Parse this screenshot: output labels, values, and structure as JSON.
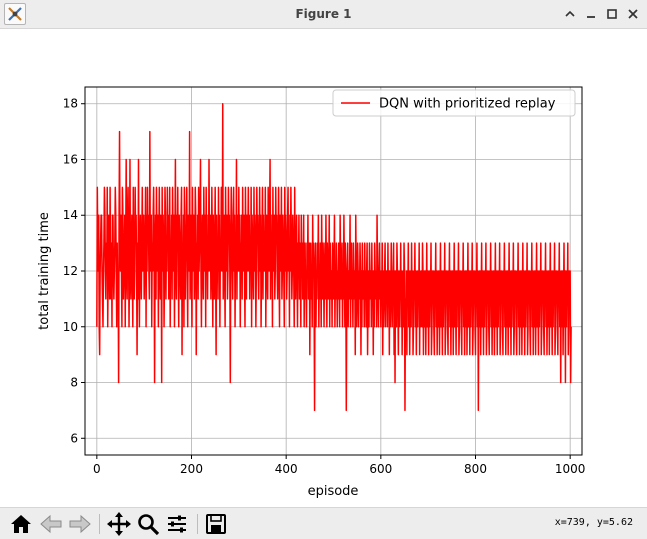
{
  "window": {
    "title": "Figure 1"
  },
  "toolbar": {
    "buttons": [
      "home-icon",
      "back-arrow-icon",
      "forward-arrow-icon",
      "pan-icon",
      "zoom-icon",
      "subplots-icon",
      "save-icon"
    ],
    "coordinates": "x=739, y=5.62"
  },
  "colors": {
    "series": "#ff0000",
    "grid": "#b0b0b0",
    "chrome": "#ededed"
  },
  "chart_data": {
    "type": "line",
    "title": "",
    "xlabel": "episode",
    "ylabel": "total training time",
    "xlim": [
      -25,
      1025
    ],
    "ylim": [
      5.4,
      18.6
    ],
    "xticks": [
      0,
      200,
      400,
      600,
      800,
      1000
    ],
    "yticks": [
      6,
      8,
      10,
      12,
      14,
      16,
      18
    ],
    "grid": true,
    "legend_position": "top-right",
    "series": [
      {
        "name": "DQN with prioritized replay",
        "color": "#ff0000",
        "x_start": 0,
        "x_step": 1,
        "values": [
          10,
          15,
          13,
          12,
          14,
          10,
          9,
          12,
          13,
          14,
          14,
          12,
          11,
          10,
          12,
          13,
          15,
          14,
          12,
          11,
          13,
          12,
          15,
          10,
          12,
          14,
          13,
          11,
          15,
          12,
          11,
          13,
          10,
          14,
          14,
          12,
          11,
          12,
          13,
          15,
          14,
          12,
          10,
          13,
          11,
          12,
          8,
          14,
          17,
          13,
          12,
          14,
          12,
          10,
          15,
          14,
          11,
          12,
          13,
          14,
          10,
          13,
          16,
          12,
          11,
          14,
          15,
          13,
          10,
          12,
          16,
          12,
          11,
          13,
          14,
          12,
          10,
          15,
          12,
          11,
          12,
          15,
          13,
          14,
          12,
          9,
          13,
          11,
          16,
          12,
          10,
          13,
          14,
          12,
          11,
          13,
          15,
          12,
          13,
          14,
          11,
          12,
          13,
          15,
          10,
          14,
          12,
          15,
          13,
          14,
          12,
          11,
          17,
          12,
          13,
          14,
          10,
          13,
          12,
          14,
          15,
          13,
          8,
          12,
          14,
          11,
          15,
          13,
          12,
          14,
          10,
          13,
          15,
          12,
          11,
          14,
          13,
          8,
          15,
          12,
          14,
          13,
          10,
          12,
          15,
          14,
          11,
          13,
          12,
          15,
          13,
          14,
          11,
          12,
          15,
          10,
          13,
          12,
          14,
          11,
          15,
          13,
          12,
          14,
          10,
          13,
          16,
          12,
          11,
          14,
          13,
          15,
          12,
          10,
          14,
          13,
          12,
          11,
          14,
          15,
          9,
          13,
          12,
          14,
          10,
          15,
          12,
          11,
          13,
          14,
          15,
          12,
          10,
          14,
          13,
          12,
          17,
          11,
          13,
          14,
          12,
          10,
          15,
          12,
          13,
          14,
          11,
          12,
          15,
          14,
          9,
          13,
          12,
          14,
          11,
          15,
          12,
          13,
          14,
          16,
          12,
          10,
          13,
          14,
          12,
          11,
          15,
          13,
          12,
          14,
          10,
          15,
          12,
          13,
          11,
          14,
          12,
          16,
          13,
          12,
          14,
          11,
          12,
          15,
          13,
          10,
          14,
          12,
          11,
          13,
          15,
          12,
          9,
          14,
          12,
          13,
          11,
          15,
          12,
          14,
          10,
          13,
          12,
          15,
          14,
          12,
          18,
          11,
          13,
          14,
          12,
          10,
          15,
          13,
          12,
          14,
          11,
          12,
          15,
          13,
          14,
          12,
          8,
          13,
          15,
          14,
          12,
          11,
          13,
          15,
          12,
          14,
          10,
          13,
          12,
          16,
          11,
          14,
          13,
          12,
          15,
          12,
          14,
          10,
          13,
          12,
          14,
          11,
          15,
          12,
          13,
          14,
          12,
          10,
          15,
          13,
          11,
          14,
          12,
          13,
          15,
          12,
          14,
          11,
          13,
          12,
          15,
          10,
          14,
          13,
          12,
          11,
          15,
          12,
          14,
          13,
          10,
          12,
          15,
          13,
          14,
          12,
          11,
          13,
          15,
          12,
          14,
          10,
          12,
          13,
          15,
          11,
          14,
          12,
          13,
          12,
          15,
          10,
          13,
          14,
          12,
          11,
          15,
          13,
          12,
          14,
          16,
          11,
          13,
          12,
          14,
          10,
          15,
          12,
          13,
          14,
          11,
          12,
          15,
          13,
          14,
          12,
          11,
          13,
          15,
          12,
          10,
          14,
          13,
          12,
          15,
          11,
          12,
          14,
          13,
          12,
          10,
          15,
          12,
          14,
          13,
          11,
          12,
          14,
          15,
          12,
          13,
          10,
          14,
          12,
          15,
          13,
          11,
          12,
          14,
          13,
          12,
          10,
          15,
          12,
          11,
          13,
          14,
          12,
          10,
          13,
          12,
          14,
          11,
          13,
          12,
          10,
          14,
          12,
          13,
          11,
          12,
          14,
          10,
          12,
          13,
          11,
          12,
          10,
          13,
          12,
          14,
          11,
          12,
          13,
          9,
          12,
          13,
          11,
          12,
          10,
          14,
          12,
          13,
          11,
          7,
          12,
          13,
          10,
          12,
          11,
          13,
          12,
          14,
          10,
          12,
          11,
          13,
          12,
          10,
          14,
          12,
          11,
          13,
          12,
          10,
          12,
          13,
          11,
          14,
          12,
          10,
          13,
          12,
          11,
          12,
          14,
          10,
          13,
          12,
          11,
          12,
          10,
          13,
          12,
          11,
          12,
          14,
          10,
          12,
          11,
          13,
          12,
          10,
          12,
          11,
          13,
          12,
          10,
          14,
          12,
          11,
          12,
          13,
          10,
          12,
          11,
          14,
          12,
          10,
          13,
          12,
          7,
          11,
          12,
          13,
          10,
          12,
          11,
          12,
          14,
          10,
          12,
          13,
          11,
          12,
          10,
          13,
          12,
          11,
          12,
          9,
          14,
          12,
          10,
          11,
          13,
          12,
          10,
          12,
          11,
          13,
          12,
          9,
          12,
          10,
          13,
          11,
          12,
          12,
          10,
          13,
          11,
          12,
          10,
          12,
          13,
          9,
          11,
          12,
          10,
          13,
          12,
          11,
          12,
          10,
          13,
          11,
          12,
          9,
          12,
          10,
          13,
          12,
          11,
          12,
          10,
          14,
          12,
          11,
          10,
          12,
          13,
          11,
          12,
          10,
          12,
          11,
          13,
          9,
          12,
          10,
          11,
          12,
          13,
          10,
          12,
          11,
          12,
          10,
          13,
          11,
          12,
          9,
          12,
          10,
          11,
          13,
          12,
          10,
          12,
          11,
          13,
          9,
          12,
          8,
          12,
          11,
          10,
          13,
          12,
          11,
          9,
          12,
          10,
          12,
          11,
          13,
          10,
          12,
          9,
          11,
          12,
          10,
          13,
          12,
          7,
          11,
          10,
          12,
          9,
          12,
          11,
          13,
          10,
          12,
          9,
          11,
          12,
          10,
          13,
          11,
          12,
          9,
          10,
          12,
          11,
          13,
          10,
          12,
          9,
          11,
          12,
          10,
          12,
          11,
          13,
          9,
          12,
          10,
          11,
          12,
          10,
          13,
          12,
          9,
          11,
          12,
          10,
          12,
          9,
          11,
          13,
          10,
          12,
          11,
          9,
          12,
          10,
          12,
          11,
          13,
          9,
          10,
          12,
          11,
          12,
          10,
          9,
          12,
          11,
          13,
          10,
          12,
          9,
          11,
          12,
          10,
          12,
          9,
          11,
          13,
          10,
          12,
          11,
          9,
          12,
          10,
          12,
          11,
          13,
          9,
          10,
          12,
          11,
          12,
          10,
          9,
          12,
          11,
          13,
          10,
          12,
          9,
          11,
          12,
          10,
          12,
          9,
          11,
          13,
          10,
          12,
          11,
          9,
          12,
          10,
          12,
          11,
          13,
          9,
          10,
          12,
          11,
          12,
          10,
          9,
          12,
          11,
          13,
          10,
          12,
          9,
          11,
          12,
          10,
          12,
          9,
          11,
          13,
          10,
          12,
          11,
          9,
          12,
          10,
          12,
          11,
          13,
          9,
          10,
          12,
          11,
          12,
          10,
          9,
          12,
          11,
          13,
          10,
          12,
          7,
          11,
          12,
          10,
          12,
          9,
          11,
          13,
          10,
          12,
          11,
          9,
          12,
          10,
          12,
          11,
          13,
          9,
          10,
          12,
          11,
          12,
          10,
          9,
          12,
          11,
          13,
          10,
          12,
          9,
          11,
          12,
          10,
          12,
          9,
          11,
          13,
          10,
          12,
          11,
          9,
          12,
          10,
          12,
          11,
          13,
          9,
          10,
          12,
          11,
          12,
          10,
          9,
          12,
          11,
          13,
          10,
          12,
          9,
          11,
          12,
          10,
          12,
          9,
          11,
          13,
          10,
          12,
          11,
          9,
          12,
          10,
          12,
          11,
          13,
          9,
          10,
          12,
          11,
          12,
          10,
          9,
          12,
          11,
          13,
          10,
          12,
          9,
          11,
          12,
          10,
          12,
          9,
          11,
          13,
          10,
          12,
          11,
          9,
          12,
          10,
          12,
          11,
          13,
          9,
          10,
          12,
          11,
          12,
          10,
          9,
          12,
          11,
          13,
          10,
          12,
          9,
          11,
          12,
          10,
          12,
          9,
          11,
          13,
          10,
          12,
          11,
          9,
          12,
          10,
          12,
          11,
          13,
          9,
          10,
          12,
          11,
          12,
          10,
          9,
          12,
          11,
          13,
          10,
          12,
          9,
          11,
          12,
          10,
          12,
          9,
          11,
          13,
          10,
          12,
          11,
          9,
          12,
          10,
          12,
          11,
          13,
          9,
          10,
          12,
          11,
          12,
          10,
          9,
          12,
          11,
          13,
          10,
          12,
          8,
          11,
          12,
          10,
          12,
          9,
          11,
          13,
          10,
          12,
          8,
          12,
          10,
          12,
          11,
          13,
          9,
          10,
          12,
          11,
          12,
          8,
          10
        ]
      }
    ]
  }
}
